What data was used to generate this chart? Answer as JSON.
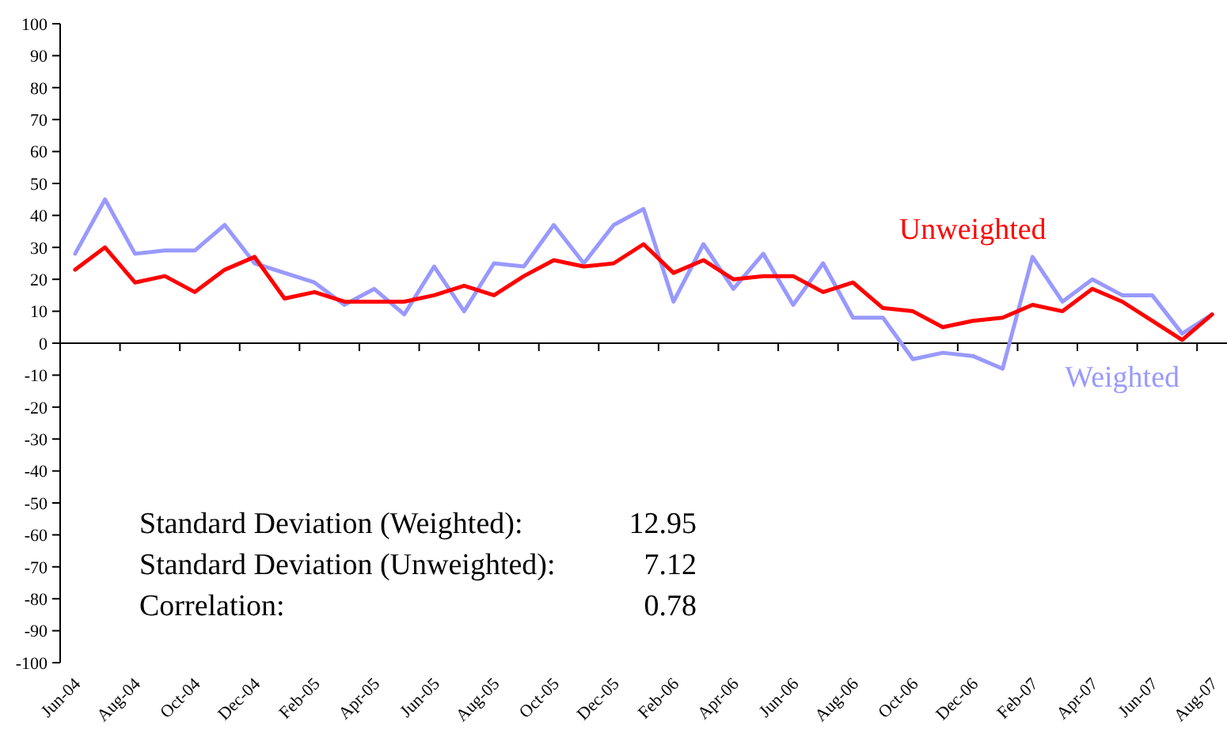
{
  "chart_data": {
    "type": "line",
    "categories": [
      "Jun-04",
      null,
      "Aug-04",
      null,
      "Oct-04",
      null,
      "Dec-04",
      null,
      "Feb-05",
      null,
      "Apr-05",
      null,
      "Jun-05",
      null,
      "Aug-05",
      null,
      "Oct-05",
      null,
      "Dec-05",
      null,
      "Feb-06",
      null,
      "Apr-06",
      null,
      "Jun-06",
      null,
      "Aug-06",
      null,
      "Oct-06",
      null,
      "Dec-06",
      null,
      "Feb-07",
      null,
      "Apr-07",
      null,
      "Jun-07",
      null,
      "Aug-07"
    ],
    "series": [
      {
        "name": "Weighted",
        "color": "#9999ff",
        "values": [
          28,
          45,
          28,
          29,
          29,
          37,
          25,
          22,
          19,
          12,
          17,
          9,
          24,
          10,
          25,
          24,
          37,
          25,
          37,
          42,
          13,
          31,
          17,
          28,
          12,
          25,
          8,
          8,
          -5,
          -3,
          -4,
          -8,
          27,
          13,
          20,
          15,
          15,
          3,
          9
        ]
      },
      {
        "name": "Unweighted",
        "color": "#ff0000",
        "values": [
          23,
          30,
          19,
          21,
          16,
          23,
          27,
          14,
          16,
          13,
          13,
          13,
          15,
          18,
          15,
          21,
          26,
          24,
          25,
          31,
          22,
          26,
          20,
          21,
          21,
          16,
          19,
          11,
          10,
          5,
          7,
          8,
          12,
          10,
          17,
          13,
          7,
          1,
          9
        ]
      }
    ],
    "ylim": [
      -100,
      100
    ],
    "yticks": [
      -100,
      -90,
      -80,
      -70,
      -60,
      -50,
      -40,
      -30,
      -20,
      -10,
      0,
      10,
      20,
      30,
      40,
      50,
      60,
      70,
      80,
      90,
      100
    ],
    "annotations": [
      "Standard Deviation (Weighted):",
      "12.95",
      "Standard Deviation (Unweighted):",
      "7.12",
      "Correlation:",
      "0.78"
    ],
    "legend": false,
    "marker": "none",
    "line_style": "solid"
  }
}
